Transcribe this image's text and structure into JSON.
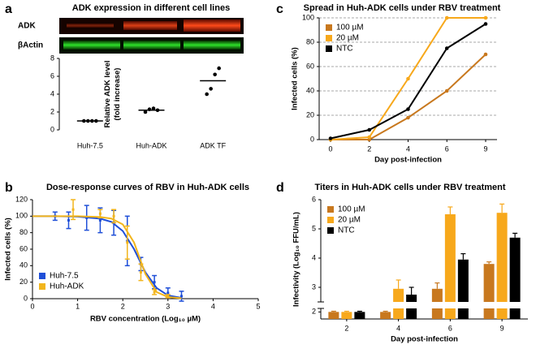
{
  "chart_data": [
    {
      "type": "dot",
      "panel": "a",
      "title": "ADK expression in different cell lines",
      "blot_labels": [
        "ADK",
        "βActin"
      ],
      "ylabel": [
        "Relative ADK level",
        "(fold increase)"
      ],
      "categories": [
        "Huh-7.5",
        "Huh-ADK",
        "ADK TF"
      ],
      "points": [
        [
          1,
          1,
          1,
          1
        ],
        [
          2.0,
          2.3,
          2.4,
          2.2
        ],
        [
          4.0,
          4.6,
          6.2,
          6.9
        ]
      ],
      "means": [
        1,
        2.2,
        5.5
      ],
      "color": "#000000",
      "ylim": [
        0,
        8
      ],
      "yticks": [
        0,
        2,
        4,
        6,
        8
      ]
    },
    {
      "type": "line",
      "panel": "b",
      "title": "Dose-response curves of RBV in Huh-ADK cells",
      "xlabel": "RBV concentration (Log₁₀ µM)",
      "ylabel": "Infected cells (%)",
      "xlim": [
        0,
        5
      ],
      "xticks": [
        0,
        1,
        2,
        3,
        4,
        5
      ],
      "ylim": [
        0,
        120
      ],
      "yticks": [
        0,
        20,
        40,
        60,
        80,
        100,
        120
      ],
      "legend": "lower left",
      "series": [
        {
          "name": "Huh-7.5",
          "color": "#1f4fd8",
          "x": [
            0.5,
            0.8,
            1.2,
            1.5,
            1.8,
            2.1,
            2.4,
            2.7,
            3.0,
            3.3
          ],
          "values": [
            100,
            95,
            98,
            95,
            92,
            70,
            42,
            20,
            7,
            3
          ],
          "errors": [
            5,
            10,
            15,
            15,
            15,
            30,
            8,
            8,
            6,
            6
          ],
          "fit_x": [
            0,
            0.5,
            1,
            1.5,
            1.75,
            2,
            2.25,
            2.5,
            2.75,
            3,
            3.3
          ],
          "fit_values": [
            100,
            100,
            99.5,
            97,
            93,
            82,
            60,
            32,
            13,
            4,
            1
          ]
        },
        {
          "name": "Huh-ADK",
          "color": "#f2b51c",
          "x": [
            0.9,
            1.5,
            1.8,
            2.1,
            2.4,
            2.7,
            3.0
          ],
          "values": [
            108,
            103,
            100,
            68,
            32,
            8,
            3
          ],
          "errors": [
            12,
            5,
            8,
            20,
            10,
            3,
            2
          ],
          "fit_x": [
            0,
            0.5,
            1,
            1.5,
            1.75,
            2,
            2.25,
            2.5,
            2.75,
            3,
            3.3
          ],
          "fit_values": [
            100,
            100,
            100,
            99,
            97,
            90,
            68,
            30,
            8,
            2,
            0.5
          ]
        }
      ]
    },
    {
      "type": "line",
      "panel": "c",
      "title": "Spread in Huh-ADK cells under RBV treatment",
      "xlabel": "Day post-infection",
      "ylabel": "Infected cells (%)",
      "categories": [
        "0",
        "2",
        "4",
        "6",
        "9"
      ],
      "ylim": [
        0,
        100
      ],
      "yticks": [
        0,
        20,
        40,
        60,
        80,
        100
      ],
      "grid": true,
      "legend": "upper left",
      "series": [
        {
          "name": "100 µM",
          "color": "#c8781e",
          "values": [
            0,
            0,
            18,
            40,
            70
          ]
        },
        {
          "name": "20 µM",
          "color": "#f7a81b",
          "values": [
            0,
            2,
            50,
            100,
            100
          ]
        },
        {
          "name": "NTC",
          "color": "#000000",
          "values": [
            1,
            8,
            25,
            75,
            95
          ]
        }
      ]
    },
    {
      "type": "bar",
      "panel": "d",
      "title": "Titers in Huh-ADK cells under RBV treatment",
      "xlabel": "Day post-infection",
      "ylabel": "Infectivity (Log₁₀ FFU/mL)",
      "categories": [
        "2",
        "4",
        "6",
        "9"
      ],
      "ylim": [
        1.8,
        6
      ],
      "ybreak": [
        2.1,
        2.5
      ],
      "yticks": [
        2,
        3,
        4,
        5,
        6
      ],
      "legend": "upper left",
      "series": [
        {
          "name": "100 µM",
          "color": "#c8781e",
          "values": [
            2.0,
            2.0,
            2.95,
            3.8
          ],
          "errors": [
            0.02,
            0.02,
            0.2,
            0.07
          ]
        },
        {
          "name": "20 µM",
          "color": "#f7a81b",
          "values": [
            2.0,
            2.95,
            5.5,
            5.55
          ],
          "errors": [
            0.02,
            0.3,
            0.25,
            0.3
          ]
        },
        {
          "name": "NTC",
          "color": "#000000",
          "values": [
            2.0,
            2.75,
            3.95,
            4.7
          ],
          "errors": [
            0.02,
            0.25,
            0.2,
            0.15
          ]
        }
      ]
    }
  ]
}
